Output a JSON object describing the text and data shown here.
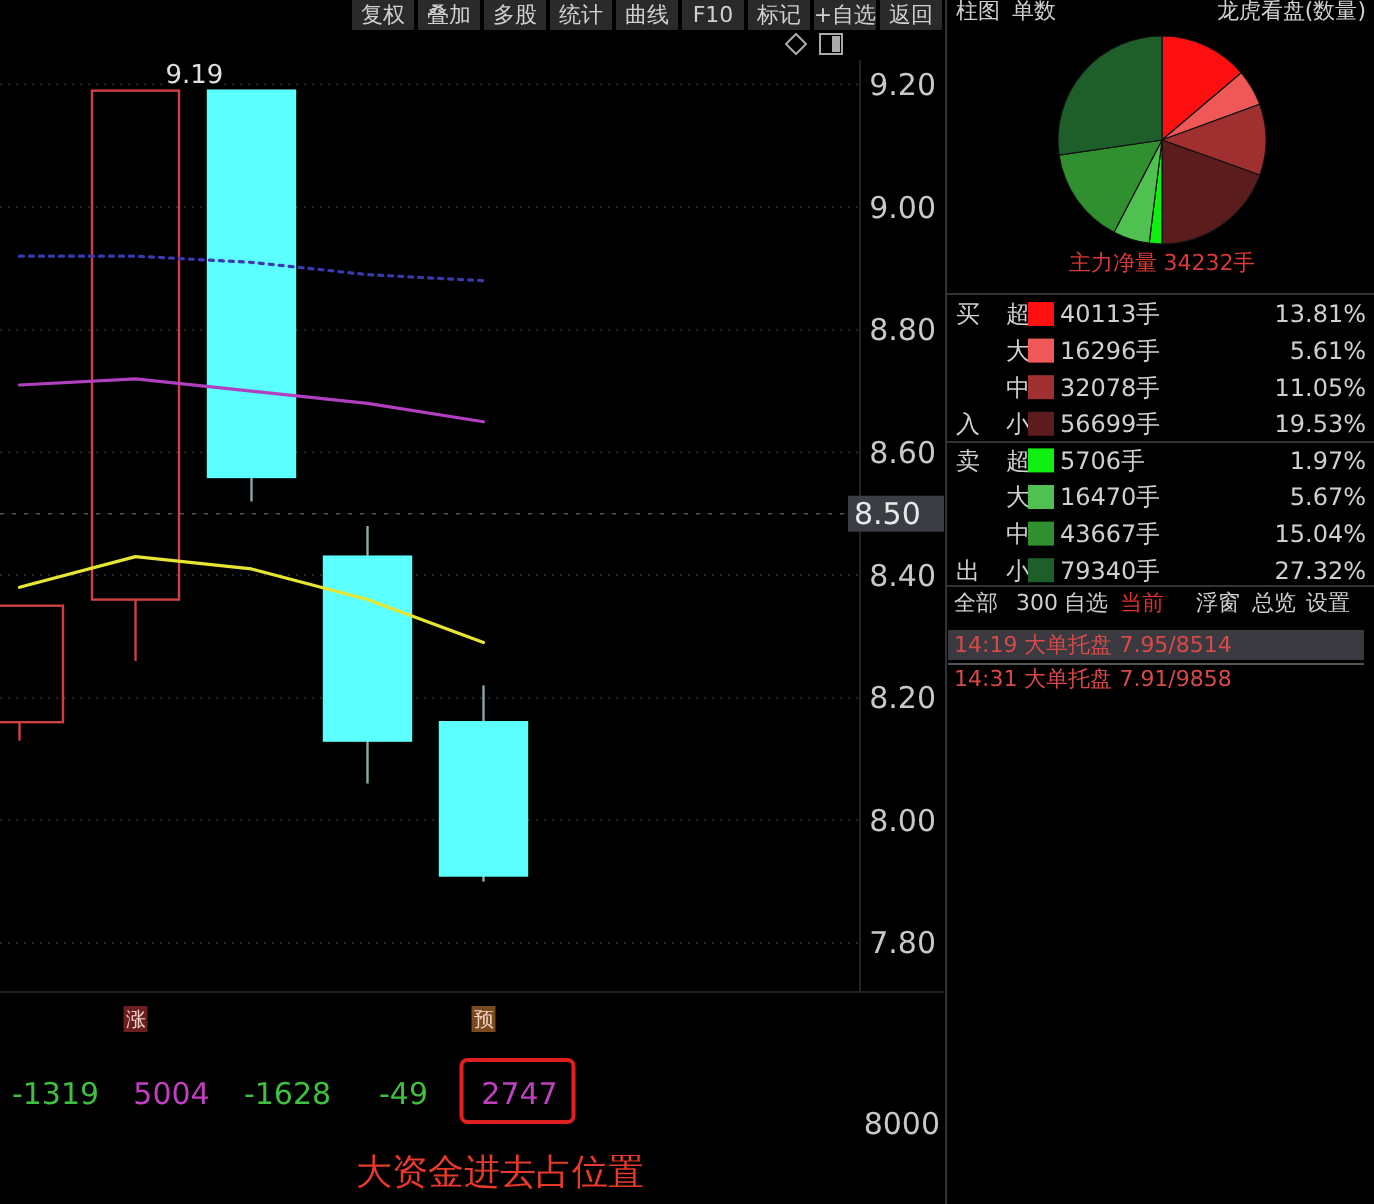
{
  "chart_data": [
    {
      "type": "candlestick",
      "categories": [
        null,
        null,
        null,
        null,
        null
      ],
      "ohlc": [
        [
          8.16,
          8.35,
          8.13,
          8.35
        ],
        [
          8.36,
          9.19,
          8.26,
          9.19
        ],
        [
          9.19,
          9.19,
          8.52,
          8.56
        ],
        [
          8.43,
          8.48,
          8.06,
          8.13
        ],
        [
          8.16,
          8.22,
          7.9,
          7.91
        ]
      ],
      "colors": [
        "#d04040",
        "#d04040",
        "#5cffff",
        "#5cffff",
        "#5cffff"
      ],
      "series": [
        {
          "type": "line",
          "color": "#e6e632",
          "values": [
            8.38,
            8.43,
            8.41,
            8.36,
            8.29
          ],
          "line_style": "solid"
        },
        {
          "type": "line",
          "color": "#b040c0",
          "values": [
            8.71,
            8.72,
            8.7,
            8.68,
            8.65
          ],
          "line_style": "solid"
        },
        {
          "type": "line",
          "color": "#3a3ab0",
          "values": [
            8.92,
            8.92,
            8.91,
            8.89,
            8.88
          ],
          "line_style": "dotted"
        }
      ],
      "ylim": [
        7.72,
        9.24
      ],
      "yticks": [
        {
          "value": 7.8,
          "label": "7.80"
        },
        {
          "value": 8.0,
          "label": "8.00"
        },
        {
          "value": 8.2,
          "label": "8.20"
        },
        {
          "value": 8.4,
          "label": "8.40"
        },
        {
          "value": 8.6,
          "label": "8.60"
        },
        {
          "value": 8.8,
          "label": "8.80"
        },
        {
          "value": 9.0,
          "label": "9.00"
        },
        {
          "value": 9.2,
          "label": "9.20"
        }
      ],
      "grid": "y",
      "ref_lines": [
        {
          "axis": "y",
          "value": 8.5,
          "label": "8.50"
        }
      ],
      "annotations": [
        "9.19",
        "-1319",
        "5004",
        "-1628",
        "-49",
        "2747",
        "涨",
        "预",
        "8000",
        "大资金进去占位置",
        "复权",
        "叠加",
        "多股",
        "统计",
        "曲线",
        "F10",
        "标记",
        "+自选",
        "返回"
      ]
    },
    {
      "type": "pie",
      "title": "龙虎看盘(数量)",
      "subtitle": "主力净量 34232手",
      "categories": [
        "超",
        "大",
        "中",
        "小",
        "超",
        "大",
        "中",
        "小"
      ],
      "values": [
        13.81,
        5.61,
        11.05,
        19.53,
        1.97,
        5.67,
        15.04,
        27.32
      ],
      "value_labels": [
        "13.81%",
        "5.61%",
        "11.05%",
        "19.53%",
        "1.97%",
        "5.67%",
        "15.04%",
        "27.32%"
      ],
      "colors": [
        "#ff1010",
        "#f05858",
        "#a03030",
        "#5a1c1c",
        "#10f010",
        "#50c050",
        "#309030",
        "#1e5e28"
      ],
      "legend": "bottom",
      "annotations": [
        "40113手",
        "16296手",
        "32078手",
        "56699手",
        "5706手",
        "16470手",
        "43667手",
        "79340手",
        "买",
        "入",
        "卖",
        "出",
        "柱图",
        "单数"
      ]
    },
    {
      "type": "other",
      "annotations": [
        "全部",
        "300",
        "自选",
        "当前",
        "浮窗",
        "总览",
        "设置",
        "14:19 大单托盘 7.95/8514",
        "14:31 大单托盘 7.91/9858"
      ]
    }
  ]
}
